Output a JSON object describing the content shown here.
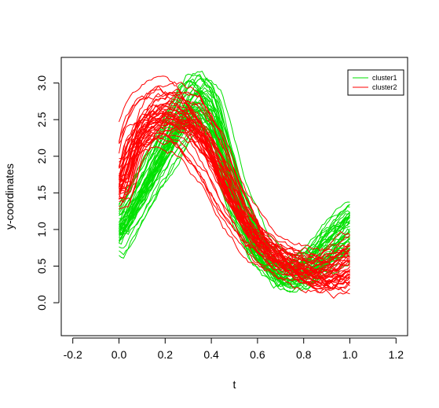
{
  "chart_data": {
    "type": "line",
    "title": "",
    "xlabel": "t",
    "ylabel": "y-coordinates",
    "xlim": [
      -0.25,
      1.25
    ],
    "ylim": [
      -0.45,
      3.35
    ],
    "x_ticks": [
      "-0.2",
      "0.0",
      "0.2",
      "0.4",
      "0.6",
      "0.8",
      "1.0",
      "1.2"
    ],
    "y_ticks": [
      "0.0",
      "0.5",
      "1.0",
      "1.5",
      "2.0",
      "2.5",
      "3.0"
    ],
    "grid": false,
    "legend_position": "top-right",
    "series": [
      {
        "name": "cluster1",
        "color": "#00e000",
        "curve_count": 45,
        "representative_curve": {
          "x": [
            0.0,
            0.1,
            0.2,
            0.3,
            0.35,
            0.4,
            0.5,
            0.6,
            0.7,
            0.8,
            0.9,
            1.0
          ],
          "y": [
            0.95,
            1.55,
            2.15,
            2.72,
            2.8,
            2.6,
            1.5,
            0.72,
            0.38,
            0.45,
            0.75,
            1.05
          ]
        }
      },
      {
        "name": "cluster2",
        "color": "#ff0000",
        "curve_count": 45,
        "representative_curve": {
          "x": [
            0.0,
            0.05,
            0.1,
            0.2,
            0.3,
            0.4,
            0.5,
            0.6,
            0.7,
            0.8,
            0.9,
            1.0
          ],
          "y": [
            1.6,
            2.2,
            2.5,
            2.65,
            2.55,
            2.05,
            1.35,
            0.85,
            0.6,
            0.45,
            0.4,
            0.55
          ]
        }
      }
    ]
  }
}
